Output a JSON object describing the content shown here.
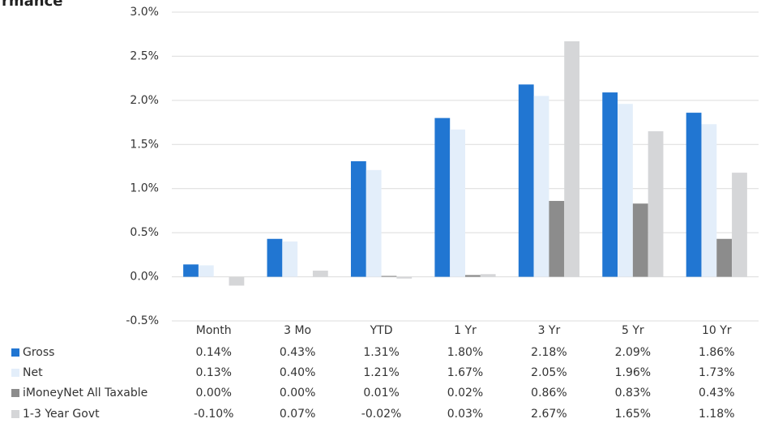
{
  "chart_data": {
    "type": "bar",
    "title": "rmance",
    "categories": [
      "Month",
      "3 Mo",
      "YTD",
      "1 Yr",
      "3 Yr",
      "5 Yr",
      "10 Yr"
    ],
    "series": [
      {
        "name": "Gross",
        "color": "#2176d2",
        "values": [
          0.14,
          0.43,
          1.31,
          1.8,
          2.18,
          2.09,
          1.86
        ],
        "value_labels": [
          "0.14%",
          "0.43%",
          "1.31%",
          "1.80%",
          "2.18%",
          "2.09%",
          "1.86%"
        ]
      },
      {
        "name": "Net",
        "color": "#e3eefa",
        "values": [
          0.13,
          0.4,
          1.21,
          1.67,
          2.05,
          1.96,
          1.73
        ],
        "value_labels": [
          "0.13%",
          "0.40%",
          "1.21%",
          "1.67%",
          "2.05%",
          "1.96%",
          "1.73%"
        ]
      },
      {
        "name": "iMoneyNet All Taxable",
        "color": "#8c8c8c",
        "values": [
          0.0,
          0.0,
          0.01,
          0.02,
          0.86,
          0.83,
          0.43
        ],
        "value_labels": [
          "0.00%",
          "0.00%",
          "0.01%",
          "0.02%",
          "0.86%",
          "0.83%",
          "0.43%"
        ]
      },
      {
        "name": "1-3 Year Govt",
        "color": "#d5d6d8",
        "values": [
          -0.1,
          0.07,
          -0.02,
          0.03,
          2.67,
          1.65,
          1.18
        ],
        "value_labels": [
          "-0.10%",
          "0.07%",
          "-0.02%",
          "0.03%",
          "2.67%",
          "1.65%",
          "1.18%"
        ]
      }
    ],
    "ylim": [
      -0.5,
      3.0
    ],
    "yticks": [
      {
        "value": -0.5,
        "label": "-0.5%"
      },
      {
        "value": 0,
        "label": "0.0%"
      },
      {
        "value": 0.5,
        "label": "0.5%"
      },
      {
        "value": 1.0,
        "label": "1.0%"
      },
      {
        "value": 1.5,
        "label": "1.5%"
      },
      {
        "value": 2.0,
        "label": "2.0%"
      },
      {
        "value": 2.5,
        "label": "2.5%"
      },
      {
        "value": 3.0,
        "label": "3.0%"
      }
    ],
    "grid": true
  }
}
